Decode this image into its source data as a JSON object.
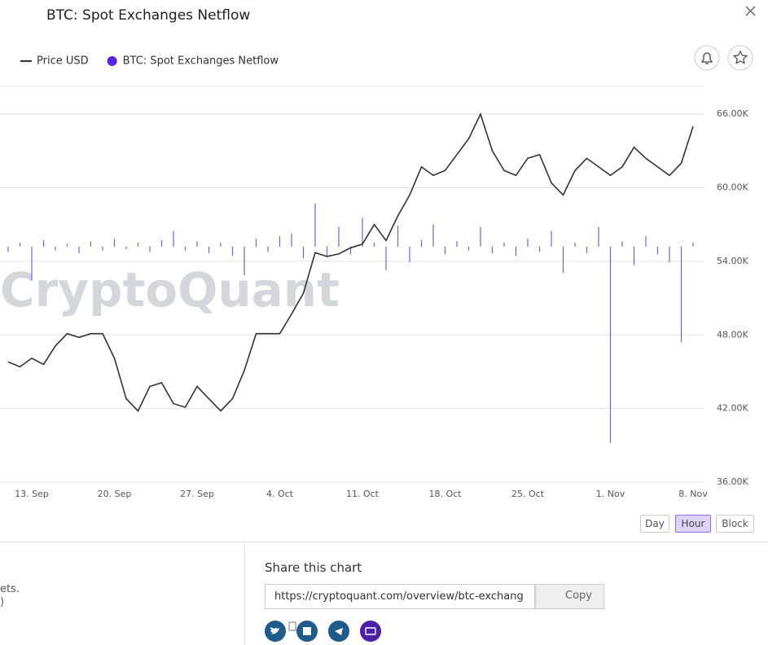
{
  "chart_data": {
    "type": "line",
    "title": "BTC: Spot Exchanges Netflow",
    "categories": [
      null,
      null,
      "13. Sep",
      null,
      null,
      null,
      null,
      null,
      null,
      "20. Sep",
      null,
      null,
      null,
      null,
      null,
      null,
      "27. Sep",
      null,
      null,
      null,
      null,
      null,
      null,
      "4. Oct",
      null,
      null,
      null,
      null,
      null,
      null,
      "11. Oct",
      null,
      null,
      null,
      null,
      null,
      null,
      "18. Oct",
      null,
      null,
      null,
      null,
      null,
      null,
      "25. Oct",
      null,
      null,
      null,
      null,
      null,
      null,
      "1. Nov",
      null,
      null,
      null,
      null,
      null,
      null,
      "8. Nov"
    ],
    "series": [
      {
        "name": "Price USD",
        "color": "#333333",
        "type": "line",
        "values": [
          45800,
          45400,
          46100,
          45600,
          47100,
          48100,
          47800,
          48100,
          48100,
          46100,
          42800,
          41800,
          43800,
          44100,
          42400,
          42100,
          43800,
          42800,
          41800,
          42800,
          45100,
          48100,
          48100,
          48100,
          49700,
          51400,
          54700,
          54400,
          54600,
          55100,
          55400,
          57000,
          55700,
          57700,
          59400,
          61700,
          61000,
          61400,
          62700,
          64000,
          66000,
          63000,
          61400,
          61000,
          62400,
          62700,
          60400,
          59400,
          61400,
          62400,
          61700,
          61000,
          61700,
          63300,
          62400,
          61700,
          61000,
          62000,
          65000
        ]
      },
      {
        "name": "BTC: Spot Exchanges Netflow",
        "color": "#7b5ce6",
        "type": "bar",
        "axis": "y2",
        "values": [
          -400,
          300,
          -2600,
          500,
          -300,
          200,
          -500,
          400,
          -300,
          600,
          -200,
          300,
          -400,
          500,
          1200,
          -300,
          400,
          -500,
          300,
          -700,
          -2200,
          600,
          -400,
          800,
          1000,
          -900,
          3300,
          -800,
          1500,
          -600,
          2200,
          300,
          -1800,
          1600,
          -1200,
          500,
          1700,
          -600,
          400,
          -300,
          1500,
          -500,
          300,
          -700,
          600,
          -400,
          1200,
          -2000,
          300,
          -500,
          1500,
          -15000,
          400,
          -1400,
          800,
          -600,
          -1200,
          -7300,
          300
        ]
      }
    ],
    "ylim": [
      36000,
      68000
    ],
    "yticks": [
      {
        "value": 36000,
        "label": "36.00K"
      },
      {
        "value": 42000,
        "label": "42.00K"
      },
      {
        "value": 48000,
        "label": "48.00K"
      },
      {
        "value": 54000,
        "label": "54.00K"
      },
      {
        "value": 60000,
        "label": "60.00K"
      },
      {
        "value": 66000,
        "label": "66.00K"
      }
    ],
    "y2lim": [
      -18000,
      12000
    ],
    "grid": true,
    "legend": "top-left",
    "watermark": "CryptoQuant"
  },
  "controls": {
    "intervals": [
      "Day",
      "Hour",
      "Block"
    ],
    "selected": 1
  },
  "share": {
    "title": "Share this chart",
    "url": "https://cryptoquant.com/overview/btc-exchang",
    "copy": "Copy"
  },
  "sidebar": {
    "fragments": [
      "ets.",
      ")"
    ]
  }
}
